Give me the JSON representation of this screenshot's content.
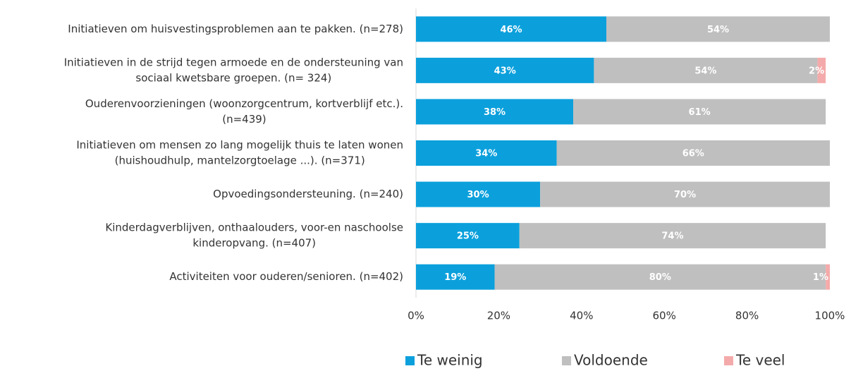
{
  "chart_data": {
    "type": "stacked-barh",
    "categories": [
      [
        "Initiatieven om huisvestingsproblemen aan te pakken. (n=278)"
      ],
      [
        "Initiatieven in de strijd tegen armoede en de ondersteuning van",
        "sociaal kwetsbare groepen. (n= 324)"
      ],
      [
        "Ouderenvoorzieningen (woonzorgcentrum, kortverblijf etc.).",
        "(n=439)"
      ],
      [
        "Initiatieven om mensen zo lang mogelijk thuis te laten wonen",
        "(huishoudhulp, mantelzorgtoelage ...). (n=371)"
      ],
      [
        "Opvoedingsondersteuning. (n=240)"
      ],
      [
        "Kinderdagverblijven, onthaalouders, voor-en naschoolse",
        "kinderopvang. (n=407)"
      ],
      [
        "Activiteiten voor ouderen/senioren. (n=402)"
      ]
    ],
    "series": [
      {
        "name": "Te weinig",
        "color": "#0ba0dc",
        "values": [
          46,
          43,
          38,
          34,
          30,
          25,
          19
        ],
        "value_labels": [
          "46%",
          "43%",
          "38%",
          "34%",
          "30%",
          "25%",
          "19%"
        ]
      },
      {
        "name": "Voldoende",
        "color": "#bfbfbf",
        "values": [
          54,
          54,
          61,
          66,
          70,
          74,
          80
        ],
        "value_labels": [
          "54%",
          "54%",
          "61%",
          "66%",
          "70%",
          "74%",
          "80%"
        ]
      },
      {
        "name": "Te veel",
        "color": "#f4aaaa",
        "values": [
          null,
          2,
          null,
          null,
          null,
          null,
          1
        ],
        "value_labels": [
          null,
          "2%",
          null,
          null,
          null,
          null,
          "1%"
        ]
      }
    ],
    "xlim": [
      0,
      100
    ],
    "xticks": [
      {
        "value": 0,
        "label": "0%"
      },
      {
        "value": 20,
        "label": "20%"
      },
      {
        "value": 40,
        "label": "40%"
      },
      {
        "value": 60,
        "label": "60%"
      },
      {
        "value": 80,
        "label": "80%"
      },
      {
        "value": 100,
        "label": "100%"
      }
    ],
    "legend": "bottom"
  }
}
